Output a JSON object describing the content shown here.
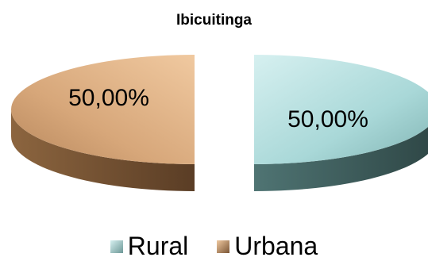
{
  "chart_data": {
    "type": "pie",
    "title": "Ibicuitinga",
    "slices": [
      {
        "name": "Rural",
        "value": 50.0,
        "label": "50,00%",
        "color": "#a9d8d8",
        "color_dark": "#3e5e5d"
      },
      {
        "name": "Urbana",
        "value": 50.0,
        "label": "50,00%",
        "color": "#d7a77a",
        "color_dark": "#6b4a2f"
      }
    ],
    "legend_position": "bottom",
    "style": "3d-exploded"
  }
}
